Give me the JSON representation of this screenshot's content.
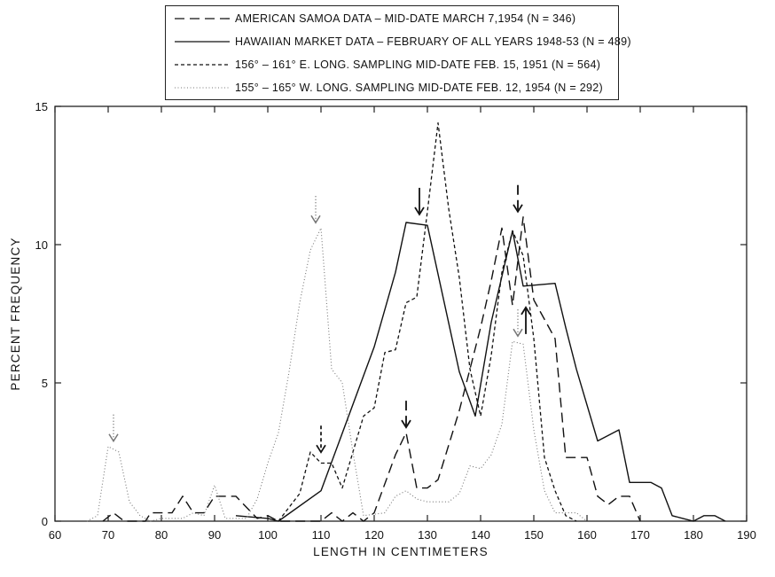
{
  "chart_data": {
    "type": "line",
    "title": "",
    "xlabel": "LENGTH IN CENTIMETERS",
    "ylabel": "PERCENT FREQUENCY",
    "xlim": [
      60,
      190
    ],
    "ylim": [
      0,
      15
    ],
    "xticks": [
      60,
      70,
      80,
      90,
      100,
      110,
      120,
      130,
      140,
      150,
      160,
      170,
      180,
      190
    ],
    "yticks": [
      0,
      5,
      10,
      15
    ],
    "grid": false,
    "legend_position": "top",
    "series": [
      {
        "name": "AMERICAN SAMOA DATA – MID-DATE MARCH 7,1954 (N = 346)",
        "style": "long-dash",
        "points": [
          [
            69,
            0
          ],
          [
            71,
            0.3
          ],
          [
            73,
            0
          ],
          [
            77,
            0
          ],
          [
            78,
            0.3
          ],
          [
            82,
            0.3
          ],
          [
            84,
            0.9
          ],
          [
            86,
            0.3
          ],
          [
            88,
            0.3
          ],
          [
            90,
            0.9
          ],
          [
            94,
            0.9
          ],
          [
            96,
            0.5
          ],
          [
            98,
            0.1
          ],
          [
            100,
            0.2
          ],
          [
            102,
            0
          ],
          [
            110,
            0
          ],
          [
            112,
            0.3
          ],
          [
            114,
            0
          ],
          [
            116,
            0.3
          ],
          [
            118,
            0
          ],
          [
            120,
            0.3
          ],
          [
            124,
            2.4
          ],
          [
            126,
            3.2
          ],
          [
            128,
            1.2
          ],
          [
            130,
            1.2
          ],
          [
            132,
            1.5
          ],
          [
            136,
            4.0
          ],
          [
            140,
            7.0
          ],
          [
            142,
            8.7
          ],
          [
            144,
            10.6
          ],
          [
            146,
            7.8
          ],
          [
            148,
            11.0
          ],
          [
            150,
            8.0
          ],
          [
            154,
            6.6
          ],
          [
            156,
            2.3
          ],
          [
            158,
            2.3
          ],
          [
            160,
            2.3
          ],
          [
            162,
            0.9
          ],
          [
            164,
            0.6
          ],
          [
            166,
            0.9
          ],
          [
            168,
            0.9
          ],
          [
            170,
            0
          ]
        ]
      },
      {
        "name": "HAWAIIAN MARKET DATA – FEBRUARY OF ALL YEARS 1948-53 (N = 489)",
        "style": "solid",
        "points": [
          [
            94,
            0.2
          ],
          [
            100,
            0.1
          ],
          [
            102,
            0
          ],
          [
            110,
            1.1
          ],
          [
            120,
            6.3
          ],
          [
            124,
            9.0
          ],
          [
            126,
            10.8
          ],
          [
            130,
            10.7
          ],
          [
            136,
            5.4
          ],
          [
            139,
            3.8
          ],
          [
            142,
            7.2
          ],
          [
            146,
            10.5
          ],
          [
            148,
            8.5
          ],
          [
            154,
            8.6
          ],
          [
            156,
            7.0
          ],
          [
            158,
            5.5
          ],
          [
            162,
            2.9
          ],
          [
            166,
            3.3
          ],
          [
            168,
            1.4
          ],
          [
            172,
            1.4
          ],
          [
            174,
            1.2
          ],
          [
            176,
            0.2
          ],
          [
            178,
            0.1
          ],
          [
            180,
            0
          ],
          [
            182,
            0.2
          ],
          [
            184,
            0.2
          ],
          [
            186,
            0
          ]
        ]
      },
      {
        "name": "156° – 161° E. LONG. SAMPLING MID-DATE FEB. 15, 1951 (N = 564)",
        "style": "short-dash",
        "points": [
          [
            102,
            0
          ],
          [
            106,
            1.0
          ],
          [
            108,
            2.5
          ],
          [
            110,
            2.1
          ],
          [
            112,
            2.1
          ],
          [
            114,
            1.2
          ],
          [
            116,
            2.5
          ],
          [
            118,
            3.8
          ],
          [
            120,
            4.1
          ],
          [
            122,
            6.1
          ],
          [
            124,
            6.2
          ],
          [
            126,
            7.9
          ],
          [
            128,
            8.1
          ],
          [
            130,
            11.2
          ],
          [
            132,
            14.4
          ],
          [
            134,
            11.3
          ],
          [
            136,
            8.8
          ],
          [
            138,
            5.5
          ],
          [
            140,
            3.8
          ],
          [
            142,
            6.0
          ],
          [
            144,
            9.0
          ],
          [
            146,
            10.5
          ],
          [
            148,
            9.6
          ],
          [
            150,
            6.6
          ],
          [
            152,
            2.3
          ],
          [
            154,
            1.1
          ],
          [
            156,
            0.2
          ],
          [
            158,
            0
          ]
        ]
      },
      {
        "name": "155° – 165° W. LONG. SAMPLING MID-DATE FEB. 12, 1954 (N = 292)",
        "style": "dotted",
        "points": [
          [
            66,
            0
          ],
          [
            68,
            0.2
          ],
          [
            70,
            2.7
          ],
          [
            72,
            2.5
          ],
          [
            74,
            0.7
          ],
          [
            76,
            0.2
          ],
          [
            78,
            0
          ],
          [
            80,
            0.1
          ],
          [
            84,
            0.1
          ],
          [
            86,
            0.3
          ],
          [
            88,
            0.2
          ],
          [
            90,
            1.3
          ],
          [
            92,
            0.1
          ],
          [
            96,
            0.1
          ],
          [
            98,
            0.8
          ],
          [
            100,
            2.1
          ],
          [
            102,
            3.2
          ],
          [
            104,
            5.4
          ],
          [
            106,
            7.9
          ],
          [
            108,
            9.8
          ],
          [
            110,
            10.6
          ],
          [
            112,
            5.5
          ],
          [
            114,
            5.0
          ],
          [
            116,
            2.5
          ],
          [
            118,
            0.2
          ],
          [
            122,
            0.3
          ],
          [
            124,
            0.9
          ],
          [
            126,
            1.1
          ],
          [
            128,
            0.8
          ],
          [
            130,
            0.7
          ],
          [
            132,
            0.7
          ],
          [
            134,
            0.7
          ],
          [
            136,
            1.0
          ],
          [
            138,
            2.0
          ],
          [
            140,
            1.9
          ],
          [
            142,
            2.4
          ],
          [
            144,
            3.5
          ],
          [
            146,
            6.5
          ],
          [
            148,
            6.4
          ],
          [
            150,
            3.3
          ],
          [
            152,
            1.1
          ],
          [
            154,
            0.3
          ],
          [
            158,
            0.3
          ],
          [
            160,
            0
          ]
        ]
      }
    ],
    "annotations": [
      {
        "type": "arrow",
        "style": "dotted",
        "x": 71,
        "y": 2.7
      },
      {
        "type": "arrow",
        "style": "dotted",
        "x": 109,
        "y": 10.6
      },
      {
        "type": "arrow",
        "style": "short-dash",
        "x": 110,
        "y": 2.3
      },
      {
        "type": "arrow",
        "style": "long-dash",
        "x": 126,
        "y": 3.2
      },
      {
        "type": "arrow",
        "style": "solid",
        "x": 128.5,
        "y": 10.9
      },
      {
        "type": "arrow",
        "style": "long-dash",
        "x": 147,
        "y": 11.0
      },
      {
        "type": "arrow",
        "style": "solid",
        "x": 148.5,
        "y": 7.6,
        "direction": "up"
      },
      {
        "type": "arrow",
        "style": "dotted",
        "x": 147,
        "y": 6.5
      }
    ]
  }
}
